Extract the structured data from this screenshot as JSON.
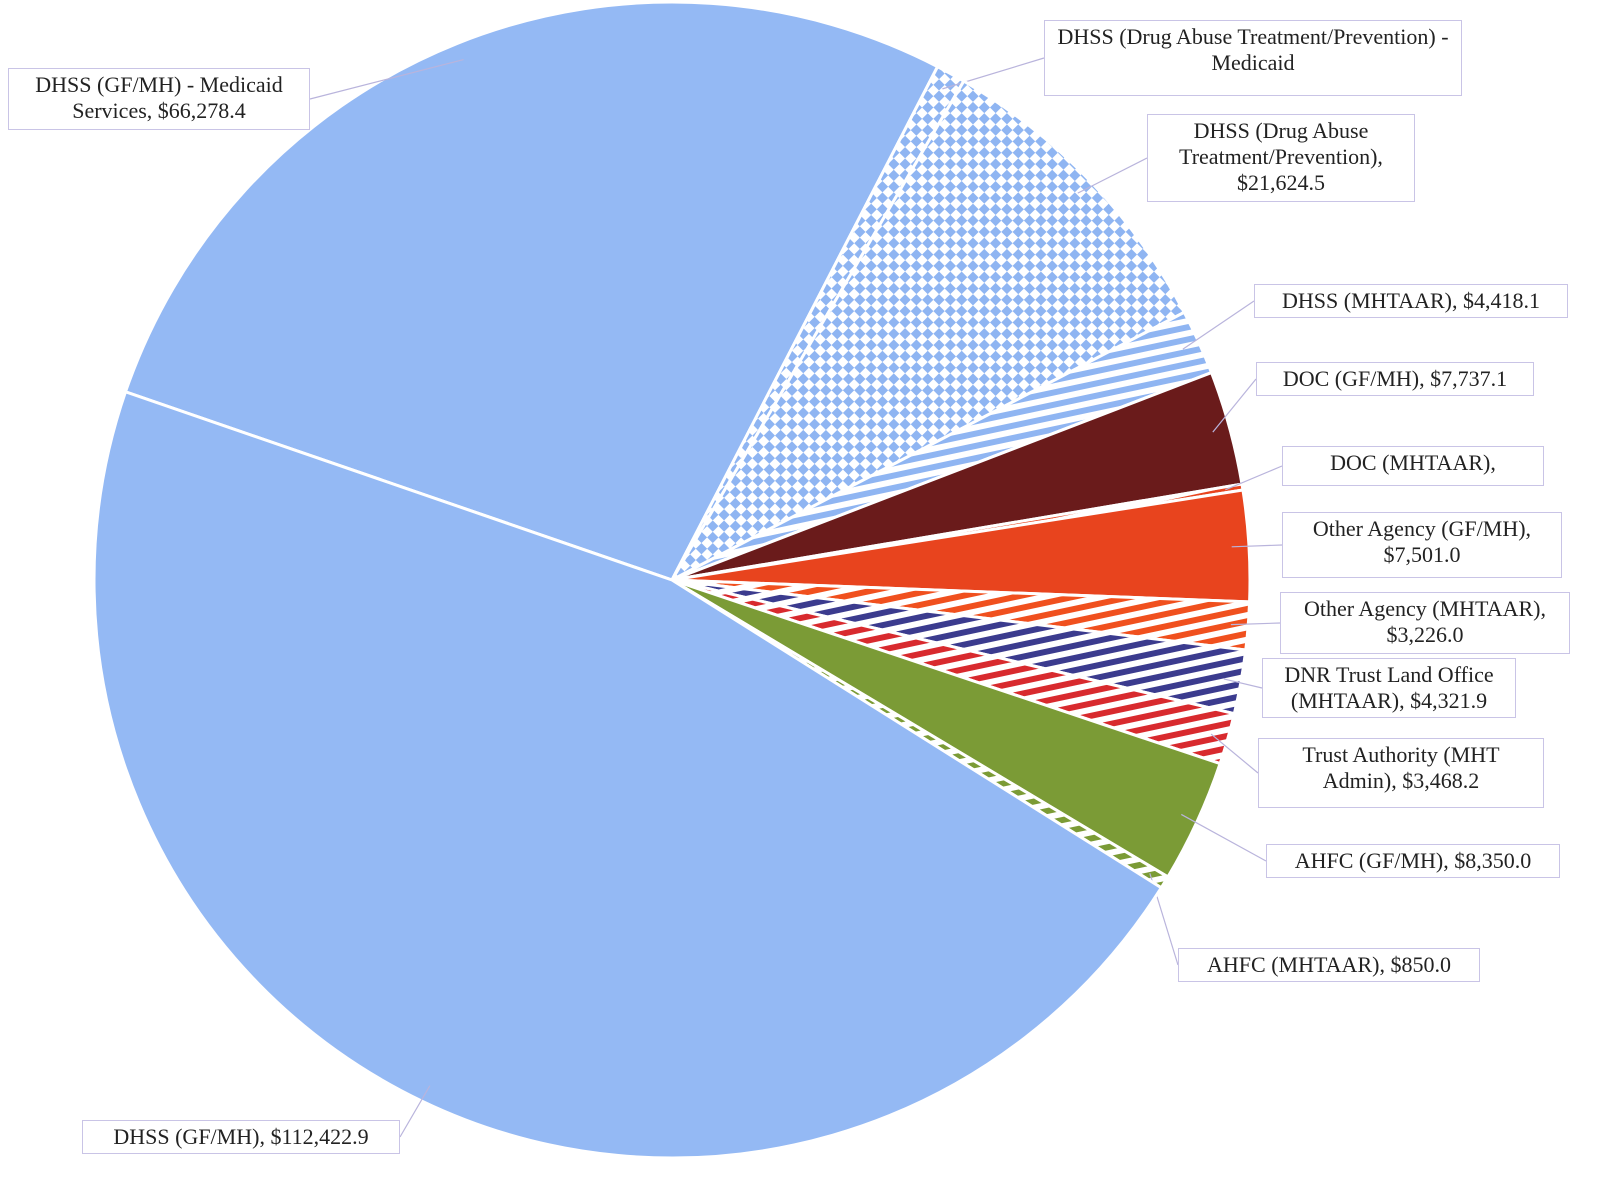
{
  "chart_data": {
    "type": "pie",
    "labels": [
      "DHSS (GF/MH) - Medicaid Services, $66,278.4",
      "DHSS (Drug Abuse Treatment/Prevention) - Medicaid",
      "DHSS (Drug Abuse Treatment/Prevention), $21,624.5",
      "DHSS (MHTAAR), $4,418.1",
      "DOC (GF/MH), $7,737.1",
      "DOC (MHTAAR),",
      "Other Agency (GF/MH), $7,501.0",
      "Other Agency (MHTAAR), $3,226.0",
      "DNR Trust Land Office (MHTAAR), $4,321.9",
      "Trust Authority (MHT Admin), $3,468.2",
      "AHFC (GF/MH), $8,350.0",
      "AHFC (MHTAAR), $850.0",
      "DHSS (GF/MH), $112,422.9"
    ],
    "values": [
      66278.4,
      2000,
      21624.5,
      4418.1,
      7737.1,
      400,
      7501.0,
      3226.0,
      4321.9,
      3468.2,
      8350.0,
      850.0,
      112422.9
    ],
    "colors": [
      "#94b9f4",
      "#8fb5f2",
      "#8fb5f2",
      "#8fb5f2",
      "#6a1b1b",
      "#e8441e",
      "#e8441e",
      "#f0501e",
      "#3b3b8e",
      "#d82a2e",
      "#7b9b36",
      "#7b9b36",
      "#94b9f4"
    ],
    "patterns": [
      "solid",
      "checker",
      "checker",
      "stripe",
      "solid",
      "stripe",
      "solid",
      "stripe",
      "stripe",
      "stripe",
      "solid",
      "stripe",
      "solid"
    ]
  }
}
